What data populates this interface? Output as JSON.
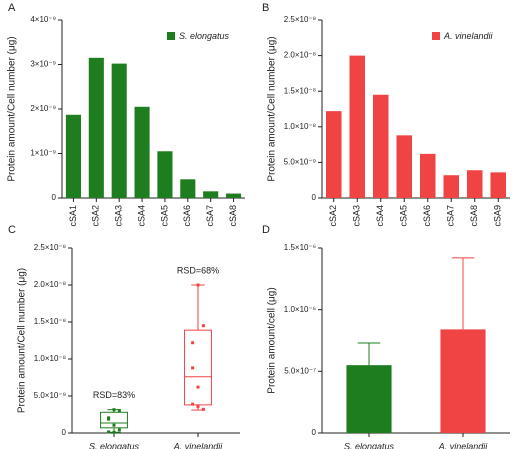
{
  "chart_data": [
    {
      "type": "bar",
      "panel": "A",
      "ylabel": "Protein amount/Cell number (μg)",
      "categories": [
        "cSA1",
        "cSA2",
        "cSA3",
        "cSA4",
        "cSA5",
        "cSA6",
        "cSA7",
        "cSA8"
      ],
      "series": [
        {
          "name": "S. elongatus",
          "color": "#1e7d1e",
          "values": [
            1.87e-09,
            3.15e-09,
            3.02e-09,
            2.05e-09,
            1.05e-09,
            4.2e-10,
            1.5e-10,
            1e-10
          ]
        }
      ],
      "ylim": [
        0,
        4e-09
      ],
      "yticks": [
        0,
        {
          "value": 1e-09,
          "label": "1×10⁻⁹"
        },
        {
          "value": 2e-09,
          "label": "2×10⁻⁹"
        },
        {
          "value": 3e-09,
          "label": "3×10⁻⁹"
        },
        {
          "value": 4e-09,
          "label": "4×10⁻⁹"
        }
      ],
      "legend": "upper right"
    },
    {
      "type": "bar",
      "panel": "B",
      "ylabel": "Protein amount/Cell number (μg)",
      "categories": [
        "cSA2",
        "cSA3",
        "cSA4",
        "cSA5",
        "cSA6",
        "cSA7",
        "cSA8",
        "cSA9"
      ],
      "series": [
        {
          "name": "A. vinelandii",
          "color": "#f04444",
          "values": [
            1.22e-08,
            2e-08,
            1.45e-08,
            8.8e-09,
            6.2e-09,
            3.2e-09,
            3.9e-09,
            3.6e-09
          ]
        }
      ],
      "ylim": [
        0,
        2.5e-08
      ],
      "yticks": [
        0,
        {
          "value": 5e-09,
          "label": "5.0×10⁻⁹"
        },
        {
          "value": 1e-08,
          "label": "1.0×10⁻⁸"
        },
        {
          "value": 1.5e-08,
          "label": "1.5×10⁻⁸"
        },
        {
          "value": 2e-08,
          "label": "2.0×10⁻⁸"
        },
        {
          "value": 2.5e-08,
          "label": "2.5×10⁻⁸"
        }
      ],
      "legend": "upper right"
    },
    {
      "type": "box",
      "panel": "C",
      "ylabel": "Protein amount/Cell number (μg)",
      "categories": [
        "S. elongatus",
        "A. vinelandii"
      ],
      "colors": [
        "#1e7d1e",
        "#f04444"
      ],
      "boxes": [
        {
          "whislo": 1e-10,
          "q1": 7e-10,
          "med": 1.35e-09,
          "q3": 2.8e-09,
          "whishi": 3.15e-09,
          "points": [
            1.87e-09,
            3.15e-09,
            3.02e-09,
            2.05e-09,
            1.05e-09,
            4.2e-10,
            1.5e-10,
            1e-10
          ]
        },
        {
          "whislo": 3.1e-09,
          "q1": 3.8e-09,
          "med": 7.6e-09,
          "q3": 1.39e-08,
          "whishi": 2e-08,
          "points": [
            1.22e-08,
            2e-08,
            1.45e-08,
            8.8e-09,
            6.2e-09,
            3.2e-09,
            3.9e-09,
            3.6e-09
          ]
        }
      ],
      "annotations": [
        "RSD=83%",
        "RSD=68%"
      ],
      "ylim": [
        0,
        2.5e-08
      ],
      "yticks": [
        0,
        {
          "value": 5e-09,
          "label": "5.0×10⁻⁹"
        },
        {
          "value": 1e-08,
          "label": "1.0×10⁻⁸"
        },
        {
          "value": 1.5e-08,
          "label": "1.5×10⁻⁸"
        },
        {
          "value": 2e-08,
          "label": "2.0×10⁻⁸"
        },
        {
          "value": 2.5e-08,
          "label": "2.5×10⁻⁸"
        }
      ]
    },
    {
      "type": "errbar",
      "panel": "D",
      "ylabel": "Protein amount/cell (μg)",
      "categories": [
        "S. elongatus",
        "A. vinelandii"
      ],
      "colors": [
        "#1e7d1e",
        "#f04444"
      ],
      "values": [
        5.5e-07,
        8.4e-07
      ],
      "errors": [
        1.8e-07,
        5.8e-07
      ],
      "ylim": [
        0,
        1.5e-06
      ],
      "yticks": [
        0,
        {
          "value": 5e-07,
          "label": "5.0×10⁻⁷"
        },
        {
          "value": 1e-06,
          "label": "1.0×10⁻⁶"
        },
        {
          "value": 1.5e-06,
          "label": "1.5×10⁻⁶"
        }
      ]
    }
  ]
}
